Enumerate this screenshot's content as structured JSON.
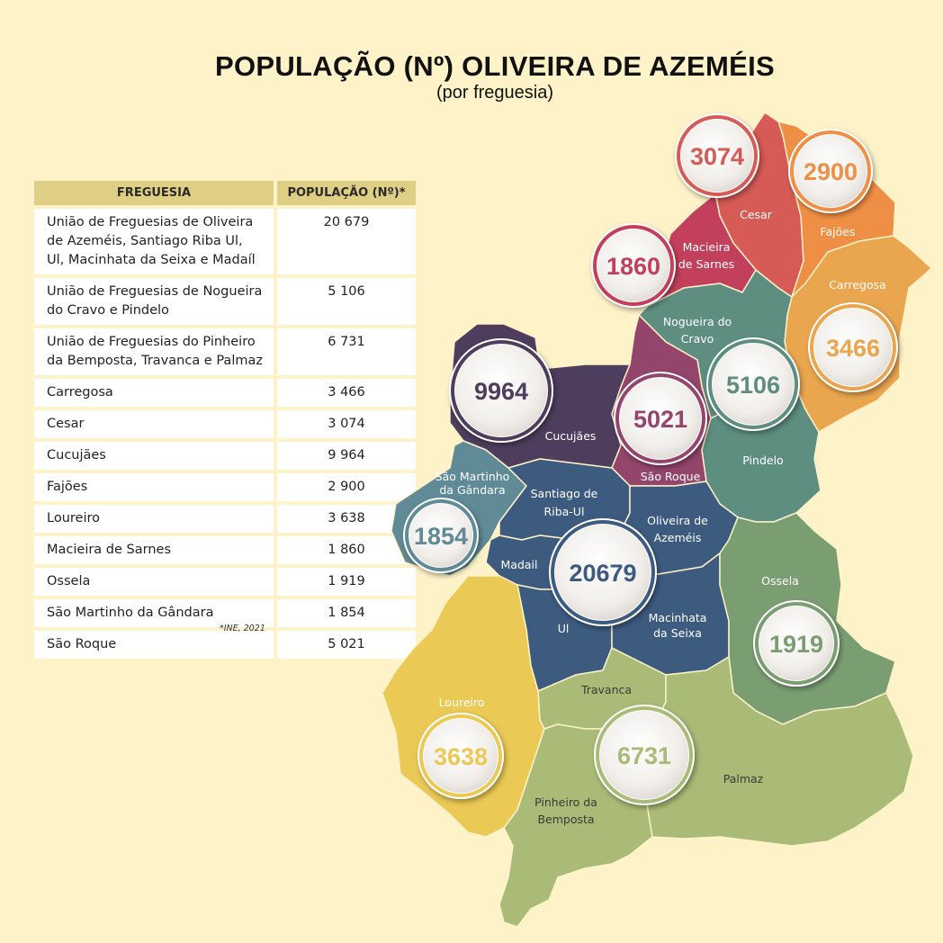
{
  "title": "POPULAÇÃO (Nº) OLIVEIRA DE AZEMÉIS",
  "subtitle": "(por freguesia)",
  "table": {
    "headers": [
      "FREGUESIA",
      "POPULAÇÃO (Nº)*"
    ],
    "rows": [
      {
        "name": "União de Freguesias de Oliveira de Azeméis, Santiago Riba Ul, Ul, Macinhata da Seixa e Madaíl",
        "value": "20 679"
      },
      {
        "name": "União de Freguesias de Nogueira do Cravo e Pindelo",
        "value": "5 106"
      },
      {
        "name": "União de Freguesias do Pinheiro da Bemposta, Travanca e Palmaz",
        "value": "6 731"
      },
      {
        "name": "Carregosa",
        "value": "3 466"
      },
      {
        "name": "Cesar",
        "value": "3 074"
      },
      {
        "name": "Cucujães",
        "value": "9 964"
      },
      {
        "name": "Fajões",
        "value": "2 900"
      },
      {
        "name": "Loureiro",
        "value": "3 638"
      },
      {
        "name": "Macieira de Sarnes",
        "value": "1 860"
      },
      {
        "name": "Ossela",
        "value": "1 919"
      },
      {
        "name": "São Martinho da Gândara",
        "value": "1 854"
      },
      {
        "name": "São Roque",
        "value": "5 021"
      }
    ]
  },
  "source": "*INE, 2021",
  "map": {
    "regions": [
      {
        "label": [
          "Cesar"
        ],
        "color": "#d65a55"
      },
      {
        "label": [
          "Fajões"
        ],
        "color": "#ef8f45"
      },
      {
        "label": [
          "Macieira",
          "de Sarnes"
        ],
        "color": "#c2405c"
      },
      {
        "label": [
          "Carregosa"
        ],
        "color": "#eaa64f"
      },
      {
        "label": [
          "Nogueira do",
          "Cravo"
        ],
        "color": "#5d8e80"
      },
      {
        "label": [
          "Cucujães"
        ],
        "color": "#4e3d5d"
      },
      {
        "label": [
          "São Roque"
        ],
        "color": "#93456c"
      },
      {
        "label": [
          "Pindelo"
        ],
        "color": "#5d8e80"
      },
      {
        "label": [
          "São Martinho",
          "da Gândara"
        ],
        "color": "#5f8a96"
      },
      {
        "label": [
          "Santiago de",
          "Riba-Ul"
        ],
        "color": "#3d5b7f"
      },
      {
        "label": [
          "Oliveira de",
          "Azeméis"
        ],
        "color": "#3d5b7f"
      },
      {
        "label": [
          "Madail"
        ],
        "color": "#3d5b7f"
      },
      {
        "label": [
          "Ul"
        ],
        "color": "#3d5b7f"
      },
      {
        "label": [
          "Macinhata",
          "da Seixa"
        ],
        "color": "#3d5b7f"
      },
      {
        "label": [
          "Ossela"
        ],
        "color": "#7a9e72"
      },
      {
        "label": [
          "Loureiro"
        ],
        "color": "#ebc955"
      },
      {
        "label": [
          "Travanca"
        ],
        "color": "#a9bb76"
      },
      {
        "label": [
          "Pinheiro da",
          "Bemposta"
        ],
        "color": "#a9bb76"
      },
      {
        "label": [
          "Palmaz"
        ],
        "color": "#a9bb76"
      }
    ],
    "bubbles": [
      {
        "value": "3074",
        "color": "#d65a55"
      },
      {
        "value": "2900",
        "color": "#ef8f45"
      },
      {
        "value": "1860",
        "color": "#c2405c"
      },
      {
        "value": "3466",
        "color": "#eaa64f"
      },
      {
        "value": "9964",
        "color": "#4e3d5d"
      },
      {
        "value": "5021",
        "color": "#93456c"
      },
      {
        "value": "5106",
        "color": "#5d8e80"
      },
      {
        "value": "1854",
        "color": "#5f8a96"
      },
      {
        "value": "20679",
        "color": "#3d5b7f"
      },
      {
        "value": "1919",
        "color": "#7a9e72"
      },
      {
        "value": "3638",
        "color": "#ebc955"
      },
      {
        "value": "6731",
        "color": "#a9bb76"
      }
    ]
  }
}
